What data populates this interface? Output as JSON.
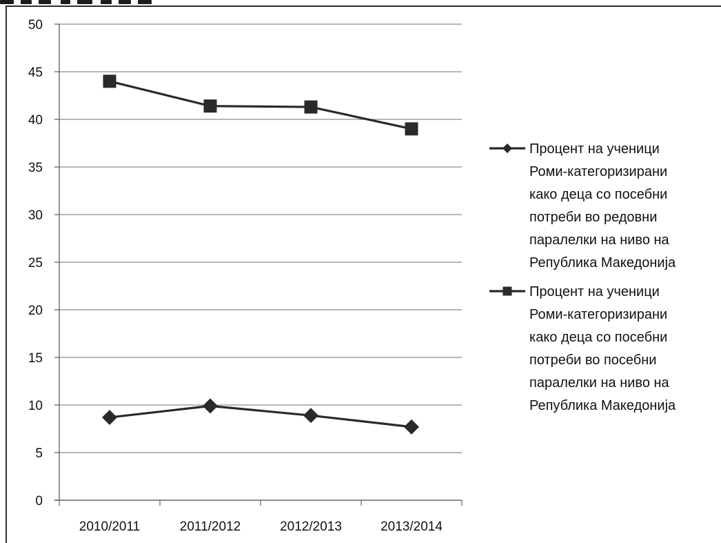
{
  "chart_data": {
    "type": "line",
    "title": "",
    "xlabel": "",
    "ylabel": "",
    "categories": [
      "2010/2011",
      "2011/2012",
      "2012/2013",
      "2013/2014"
    ],
    "ylim": [
      0,
      50
    ],
    "yticks": [
      0,
      5,
      10,
      15,
      20,
      25,
      30,
      35,
      40,
      45,
      50
    ],
    "grid": true,
    "legend_position": "right",
    "series": [
      {
        "name": "Процент на ученици Роми-категоризирани како деца со посебни потреби во редовни паралелки на ниво на Република Македонија",
        "legend_lines": [
          "Процент на ученици",
          "Роми-категоризирани",
          "како деца со посебни",
          "потреби во редовни",
          "паралелки на ниво на",
          "Република Македонија"
        ],
        "marker": "diamond",
        "color": "#2a2a2a",
        "values": [
          8.7,
          9.9,
          8.9,
          7.7
        ]
      },
      {
        "name": "Процент на ученици Роми-категоризирани како деца со посебни потреби во посебни паралелки на ниво на Република Македонија",
        "legend_lines": [
          "Процент на ученици",
          "Роми-категоризирани",
          "како деца со посебни",
          "потреби во посебни",
          "паралелки на ниво на",
          "Република Македонија"
        ],
        "marker": "square",
        "color": "#2a2a2a",
        "values": [
          44.0,
          41.4,
          41.3,
          39.0
        ]
      }
    ]
  }
}
